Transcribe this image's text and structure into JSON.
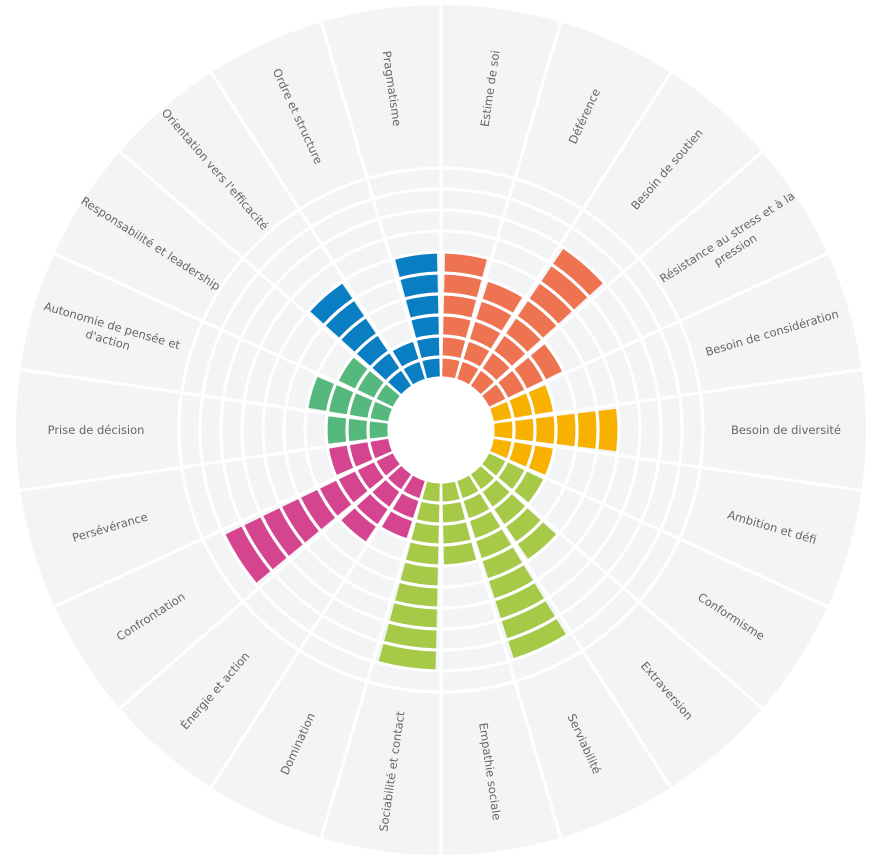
{
  "chart_data": {
    "type": "radial_bar",
    "categories": [
      [
        "Estime de soi"
      ],
      [
        "Déférence"
      ],
      [
        "Besoin de soutien"
      ],
      [
        "Résistance au stress et à la",
        "pression"
      ],
      [
        "Besoin de considération"
      ],
      [
        "Besoin de diversité"
      ],
      [
        "Ambition et défi"
      ],
      [
        "Conformisme"
      ],
      [
        "Extraversion"
      ],
      [
        "Serviabilité"
      ],
      [
        "Empathie sociale"
      ],
      [
        "Sociabilité et contact"
      ],
      [
        "Domination"
      ],
      [
        "Énergie et action"
      ],
      [
        "Confrontation"
      ],
      [
        "Persévérance"
      ],
      [
        "Prise de décision"
      ],
      [
        "Autonomie de pensée et",
        "d'action"
      ],
      [
        "Responsabilité et leadership"
      ],
      [
        "Orientation vers l'efficacité"
      ],
      [
        "Ordre et structure"
      ],
      [
        "Pragmatisme"
      ]
    ],
    "values": [
      6,
      5,
      8,
      4,
      3,
      6,
      3,
      3,
      5,
      9,
      4,
      9,
      3,
      4,
      9,
      3,
      3,
      4,
      3,
      6,
      2,
      6
    ],
    "colors": [
      "#ee7350",
      "#ee7350",
      "#ee7350",
      "#ee7350",
      "#f9b100",
      "#f9b100",
      "#f9b100",
      "#a6c947",
      "#a6c947",
      "#a6c947",
      "#a6c947",
      "#a6c947",
      "#d5448f",
      "#d5448f",
      "#d5448f",
      "#d5448f",
      "#55b87c",
      "#55b87c",
      "#55b87c",
      "#0a7ec2",
      "#0a7ec2",
      "#0a7ec2"
    ],
    "rlim": [
      0,
      10
    ]
  }
}
